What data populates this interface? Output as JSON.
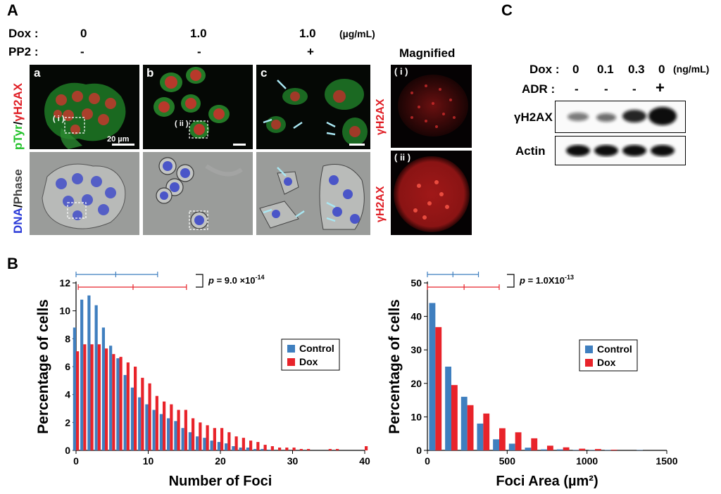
{
  "panelA": {
    "label": "A",
    "dox_label": "Dox :",
    "pp2_label": "PP2 :",
    "conditions": [
      {
        "dox": "0",
        "pp2": "-"
      },
      {
        "dox": "1.0",
        "pp2": "-"
      },
      {
        "dox": "1.0",
        "pp2": "+"
      }
    ],
    "unit": "(µg/mL)",
    "magnified_label": "Magnified",
    "subpanels": [
      "a",
      "b",
      "c"
    ],
    "insets": [
      "( i )",
      "( ii )"
    ],
    "scale_bar": "20 µm",
    "stain_top": {
      "green": "pTyr",
      "slash": "/",
      "red": "γH2AX"
    },
    "stain_bottom": {
      "blue": "DNA",
      "slash": "/",
      "gray": "Phase"
    },
    "mag_stain": "γH2AX"
  },
  "panelB": {
    "label": "B",
    "charts": [
      {
        "type": "bar",
        "xlabel": "Number of Foci",
        "ylabel": "Percentage of cells",
        "xlim": [
          0,
          40
        ],
        "ylim": [
          0,
          12
        ],
        "xticks": [
          0,
          10,
          20,
          30,
          40
        ],
        "yticks": [
          0,
          2,
          4,
          6,
          8,
          10,
          12
        ],
        "legend": "center-right",
        "pvalue": {
          "prefix": "p",
          "text": " = 9.0 ×10",
          "exp": "-14"
        },
        "errorbars": [
          {
            "series": "Control",
            "mean": 5.5,
            "low": 0,
            "high": 11.3
          },
          {
            "series": "Dox",
            "mean": 7.9,
            "low": 0.3,
            "high": 15.3
          }
        ],
        "x": [
          0,
          1,
          2,
          3,
          4,
          5,
          6,
          7,
          8,
          9,
          10,
          11,
          12,
          13,
          14,
          15,
          16,
          17,
          18,
          19,
          20,
          21,
          22,
          23,
          24,
          25,
          26,
          27,
          28,
          29,
          30,
          31,
          32,
          33,
          34,
          35,
          36,
          37,
          38,
          39,
          40
        ],
        "series": [
          {
            "name": "Control",
            "color": "#3f7fbf",
            "values": [
              8.8,
              10.8,
              11.1,
              10.4,
              8.8,
              7.5,
              6.6,
              5.4,
              4.5,
              3.8,
              3.3,
              2.9,
              2.6,
              2.3,
              2.1,
              1.6,
              1.3,
              1.0,
              0.9,
              0.7,
              0.6,
              0.5,
              0.3,
              0.2,
              0.2,
              0.1,
              0.1,
              0.05,
              0,
              0,
              0,
              0,
              0,
              0,
              0,
              0,
              0,
              0,
              0,
              0,
              0
            ]
          },
          {
            "name": "Dox",
            "color": "#e8232a",
            "values": [
              7.1,
              7.6,
              7.6,
              7.6,
              7.3,
              6.9,
              6.7,
              6.3,
              6.0,
              5.2,
              4.8,
              3.9,
              3.5,
              3.3,
              2.9,
              2.9,
              2.3,
              2.0,
              1.8,
              1.6,
              1.6,
              1.3,
              1.0,
              0.9,
              0.7,
              0.6,
              0.4,
              0.3,
              0.2,
              0.2,
              0.2,
              0.1,
              0.1,
              0,
              0,
              0.1,
              0.1,
              0,
              0,
              0,
              0.3
            ]
          }
        ]
      },
      {
        "type": "bar",
        "xlabel": "Foci Area (µm²)",
        "ylabel": "Percentage of cells",
        "xlim": [
          0,
          1500
        ],
        "ylim": [
          0,
          50
        ],
        "xticks": [
          0,
          500,
          1000,
          1500
        ],
        "yticks": [
          0,
          10,
          20,
          30,
          40,
          50
        ],
        "legend": "center-right",
        "pvalue": {
          "prefix": "p",
          "text": " = 1.0X10",
          "exp": "-13"
        },
        "errorbars": [
          {
            "series": "Control",
            "mean": 160,
            "low": 0,
            "high": 320
          },
          {
            "series": "Dox",
            "mean": 230,
            "low": 0,
            "high": 450
          }
        ],
        "x": [
          50,
          150,
          250,
          350,
          450,
          550,
          650,
          750,
          850,
          950,
          1050,
          1150,
          1250,
          1350,
          1450
        ],
        "series": [
          {
            "name": "Control",
            "color": "#3f7fbf",
            "values": [
              44,
              25,
              16,
              8,
              3.3,
              2,
              0.8,
              0.3,
              0.3,
              0.1,
              0.1,
              0.1,
              0,
              0.1,
              0
            ]
          },
          {
            "name": "Dox",
            "color": "#e8232a",
            "values": [
              36.8,
              19.5,
              13.5,
              11,
              6.6,
              5.4,
              3.6,
              1.4,
              0.9,
              0.5,
              0.4,
              0.2,
              0,
              0,
              0
            ]
          }
        ]
      }
    ]
  },
  "panelC": {
    "label": "C",
    "dox_label": "Dox :",
    "dox_values": [
      "0",
      "0.1",
      "0.3",
      "0"
    ],
    "unit": "(ng/mL)",
    "adr_label": "ADR :",
    "adr_values": [
      "-",
      "-",
      "-",
      "+"
    ],
    "bands": [
      "γH2AX",
      "Actin"
    ]
  }
}
